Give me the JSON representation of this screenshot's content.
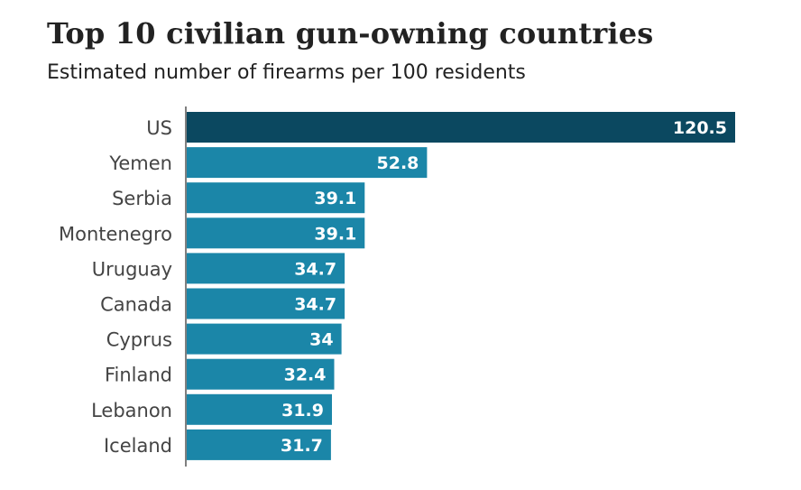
{
  "chart_data": {
    "type": "bar",
    "orientation": "horizontal",
    "title": "Top 10 civilian gun-owning countries",
    "subtitle": "Estimated number of firearms per 100 residents",
    "categories": [
      "US",
      "Yemen",
      "Serbia",
      "Montenegro",
      "Uruguay",
      "Canada",
      "Cyprus",
      "Finland",
      "Lebanon",
      "Iceland"
    ],
    "values": [
      120.5,
      52.8,
      39.1,
      39.1,
      34.7,
      34.7,
      34,
      32.4,
      31.9,
      31.7
    ],
    "value_labels": [
      "120.5",
      "52.8",
      "39.1",
      "39.1",
      "34.7",
      "34.7",
      "34",
      "32.4",
      "31.9",
      "31.7"
    ],
    "xlim": [
      0,
      120.5
    ],
    "xlabel": "",
    "ylabel": "",
    "grid": false,
    "colors": {
      "highlight": "#0b4860",
      "default": "#1b86a8",
      "label": "#ffffff",
      "axis": "#555555",
      "category_text": "#444444"
    }
  }
}
